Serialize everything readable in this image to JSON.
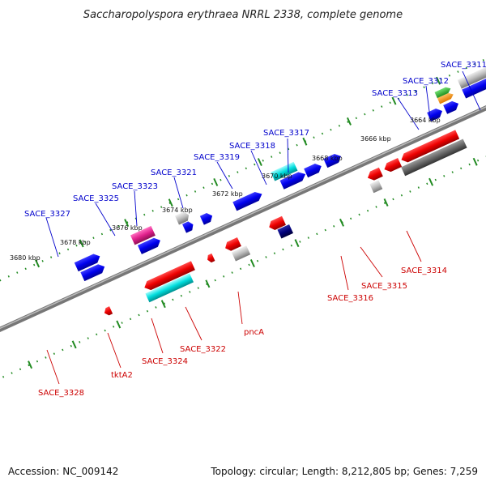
{
  "title": "Saccharopolyspora erythraea NRRL 2338, complete genome",
  "accession": "Accession: NC_009142",
  "topology": "Topology: circular; Length: 8,212,805 bp; Genes: 7,259",
  "ruler_labels": [
    "3664 kbp",
    "3666 kbp",
    "3668 kbp",
    "3670 kbp",
    "3672 kbp",
    "3674 kbp",
    "3676 kbp",
    "3678 kbp",
    "3680 kbp"
  ],
  "top_labels": [
    "SACE_3311",
    "SACE_3312",
    "SACE_3313",
    "SACE_3317",
    "SACE_3318",
    "SACE_3319",
    "SACE_3321",
    "SACE_3323",
    "SACE_3325",
    "SACE_3327"
  ],
  "bottom_labels": [
    "SACE_3314",
    "SACE_3315",
    "SACE_3316",
    "pncA",
    "SACE_3322",
    "SACE_3324",
    "tktA2",
    "SACE_3328"
  ],
  "colors": {
    "forward_label": "#0000cc",
    "reverse_label": "#cc0000",
    "ruler_tick": "#228b22",
    "backbone": "#777777",
    "gene_blue": "#0000ee",
    "gene_red": "#ee0000",
    "gene_cyan": "#00cccc",
    "gene_magenta": "#e0208c",
    "gene_gray": "#aaaaaa",
    "gene_navy": "#00007a"
  }
}
